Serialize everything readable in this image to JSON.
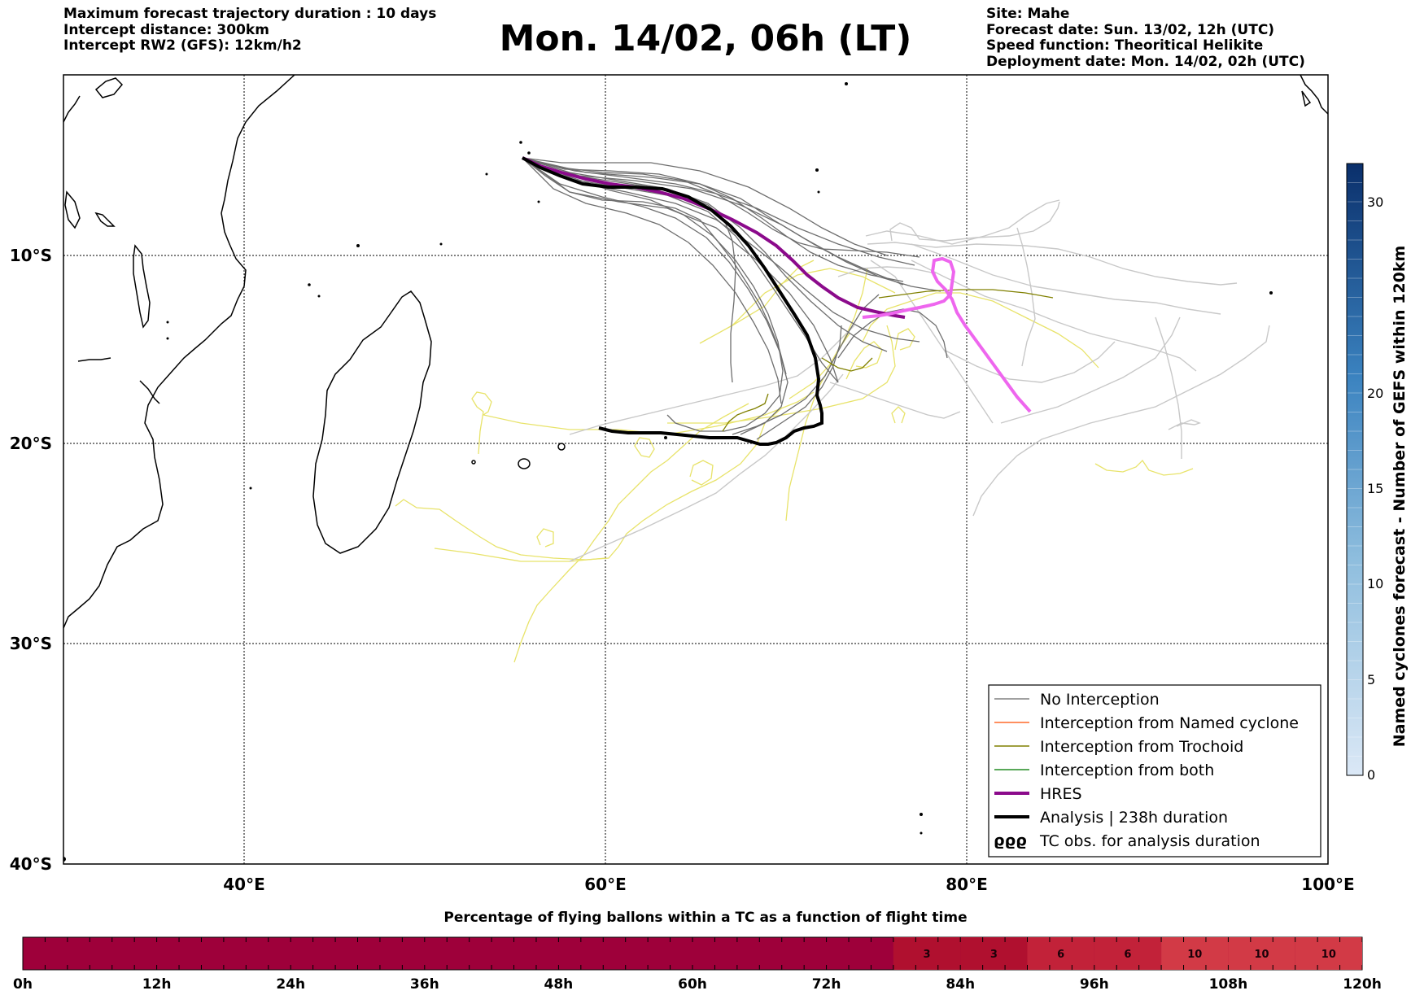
{
  "header_left": {
    "line1": "Maximum forecast trajectory duration : 10 days",
    "line2": "Intercept distance: 300km",
    "line3": "Intercept RW2 (GFS):  12km/h2"
  },
  "title": "Mon. 14/02, 06h (LT)",
  "header_right": {
    "line1": "Site: Mahe",
    "line2": "Forecast date: Sun. 13/02, 12h (UTC)",
    "line3": "Speed function: Theoritical Helikite",
    "line4": "Deployment date: Mon. 14/02, 02h (UTC)"
  },
  "map": {
    "lat_labels": [
      "10°S",
      "20°S",
      "30°S",
      "40°S"
    ],
    "lon_labels": [
      "40°E",
      "60°E",
      "80°E",
      "100°E"
    ]
  },
  "legend": {
    "items": [
      {
        "label": "No Interception",
        "color": "#808080"
      },
      {
        "label": "Interception from Named cyclone",
        "color": "#ff6a2a"
      },
      {
        "label": "Interception from Trochoid",
        "color": "#808000"
      },
      {
        "label": "Interception from both",
        "color": "#228b22"
      },
      {
        "label": "HRES",
        "color": "#8b0a8b"
      },
      {
        "label": "Analysis | 238h duration",
        "color": "#000000"
      },
      {
        "label": "TC obs. for analysis duration",
        "color": "#000000"
      }
    ]
  },
  "colorbar_right": {
    "label": "Named cyclones forecast - Number of GEFS within 120km",
    "ticks": [
      "0",
      "5",
      "10",
      "15",
      "20",
      "30"
    ],
    "top_color": "#0a2f6b",
    "bottom_color": "#dbe8f6"
  },
  "percentage_bar": {
    "title": "Percentage of flying ballons within a TC as a function of flight time",
    "time_labels": [
      "0h",
      "12h",
      "24h",
      "36h",
      "48h",
      "60h",
      "72h",
      "84h",
      "96h",
      "108h",
      "120h"
    ],
    "base_color": "#9e003a",
    "cells": [
      {
        "value": "3",
        "color": "#b0102f"
      },
      {
        "value": "3",
        "color": "#b0102f"
      },
      {
        "value": "6",
        "color": "#c22239"
      },
      {
        "value": "6",
        "color": "#c22239"
      },
      {
        "value": "10",
        "color": "#d23a46"
      },
      {
        "value": "10",
        "color": "#d23a46"
      },
      {
        "value": "10",
        "color": "#d23a46"
      }
    ]
  }
}
